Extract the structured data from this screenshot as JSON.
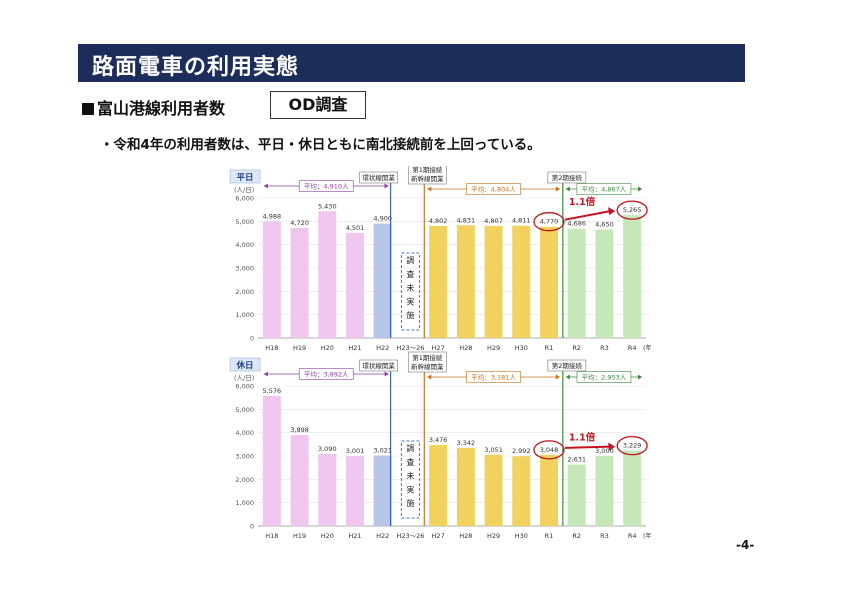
{
  "page": {
    "title": "路面電車の利用実態",
    "section_heading": "富山港線利用者数",
    "badge": "OD調査",
    "summary": "・令和4年の利用者数は、平日・休日ともに南北接続前を上回っている。",
    "page_number": "-4-"
  },
  "chart_data": [
    {
      "type": "bar",
      "panel_label": "平日",
      "ylabel": "(人/日)",
      "ylim": [
        0,
        6000
      ],
      "yticks": [
        "6,000",
        "5,000",
        "4,000",
        "3,000",
        "2,000",
        "1,000",
        "0"
      ],
      "categories": [
        "H18",
        "H19",
        "H20",
        "H21",
        "H22",
        "H23～26",
        "H27",
        "H28",
        "H29",
        "H30",
        "R1",
        "R2",
        "R3",
        "R4"
      ],
      "x_unit": "(年)",
      "values": [
        4988,
        4720,
        5430,
        4501,
        4900,
        null,
        4802,
        4831,
        4807,
        4811,
        4770,
        4686,
        4650,
        5265
      ],
      "value_labels": [
        "4,988",
        "4,720",
        "5,430",
        "4,501",
        "4,900",
        "",
        "4,802",
        "4,831",
        "4,807",
        "4,811",
        "4,770",
        "4,686",
        "4,650",
        "5,265"
      ],
      "bar_colors": [
        "#f0c6ef",
        "#f0c6ef",
        "#f0c6ef",
        "#f0c6ef",
        "#b7c6e6",
        null,
        "#f2d25e",
        "#f2d25e",
        "#f2d25e",
        "#f2d25e",
        "#f2d25e",
        "#c6e8b8",
        "#c6e8b8",
        "#c6e8b8"
      ],
      "not_surveyed_label": "調査未実施",
      "period_labels": {
        "loop": "環状線開業",
        "phase1": "第1期接続\n新幹線開業",
        "phase2": "第2期接続"
      },
      "averages": [
        "平均：4,910人",
        "平均：4,804人",
        "平均：4,867人"
      ],
      "ratio_label": "1.1倍"
    },
    {
      "type": "bar",
      "panel_label": "休日",
      "ylabel": "(人/日)",
      "ylim": [
        0,
        6000
      ],
      "yticks": [
        "6,000",
        "5,000",
        "4,000",
        "3,000",
        "2,000",
        "1,000",
        "0"
      ],
      "categories": [
        "H18",
        "H19",
        "H20",
        "H21",
        "H22",
        "H23～26",
        "H27",
        "H28",
        "H29",
        "H30",
        "R1",
        "R2",
        "R3",
        "R4"
      ],
      "x_unit": "(年)",
      "values": [
        5576,
        3898,
        3090,
        3001,
        3021,
        null,
        3476,
        3342,
        3051,
        2992,
        3048,
        2631,
        3000,
        3229
      ],
      "value_labels": [
        "5,576",
        "3,898",
        "3,090",
        "3,001",
        "3,021",
        "",
        "3,476",
        "3,342",
        "3,051",
        "2,992",
        "3,048",
        "2,631",
        "3,000",
        "3,229"
      ],
      "bar_colors": [
        "#f0c6ef",
        "#f0c6ef",
        "#f0c6ef",
        "#f0c6ef",
        "#b7c6e6",
        null,
        "#f2d25e",
        "#f2d25e",
        "#f2d25e",
        "#f2d25e",
        "#f2d25e",
        "#c6e8b8",
        "#c6e8b8",
        "#c6e8b8"
      ],
      "not_surveyed_label": "調査未実施",
      "period_labels": {
        "loop": "環状線開業",
        "phase1": "第1期接続\n新幹線開業",
        "phase2": "第2期接続"
      },
      "averages": [
        "平均：3,892人",
        "平均：3,181人",
        "平均：2,953人"
      ],
      "ratio_label": "1.1倍"
    }
  ]
}
